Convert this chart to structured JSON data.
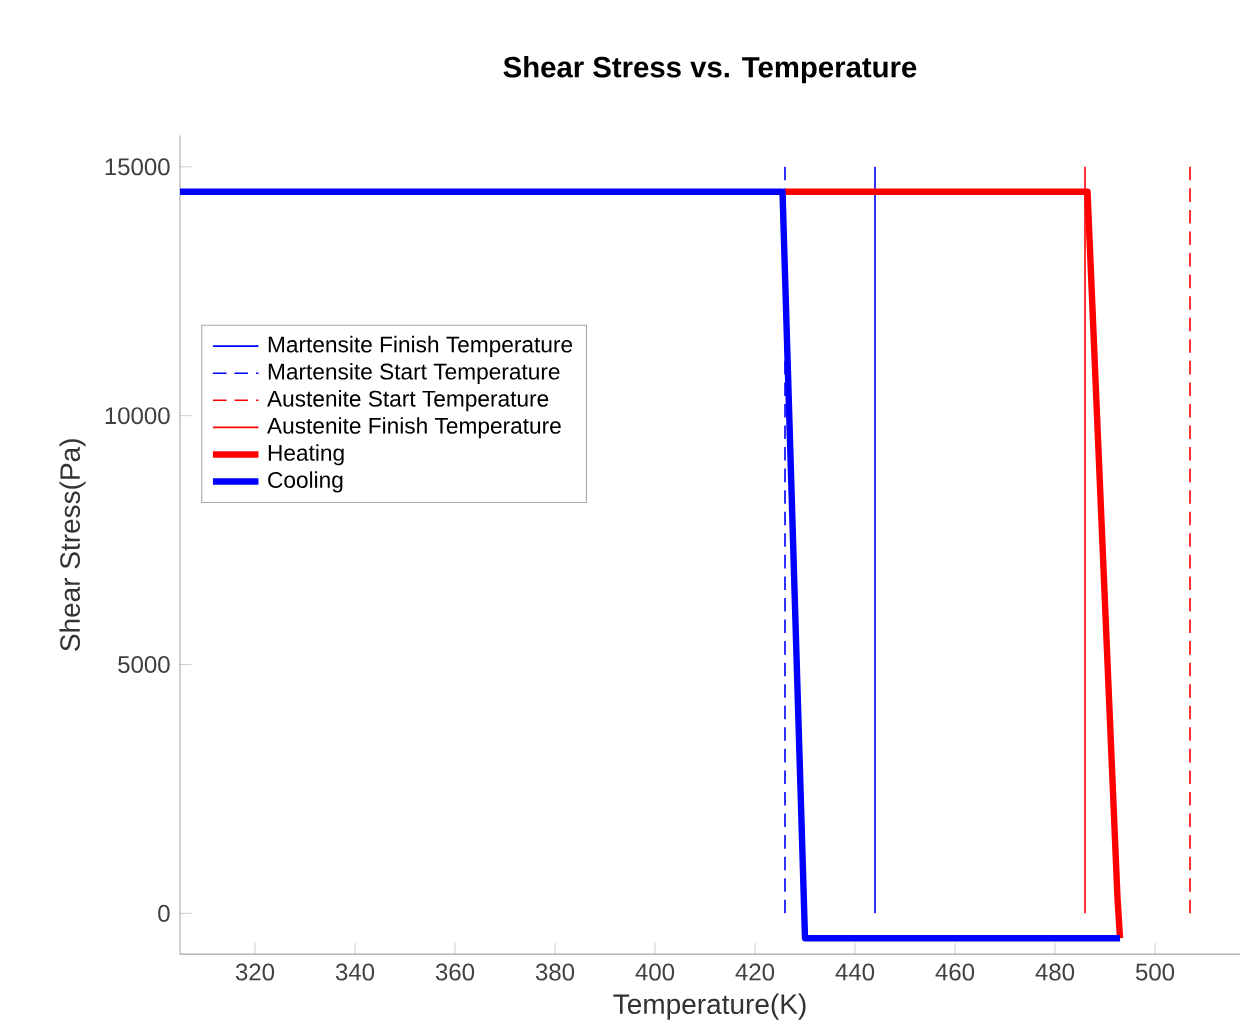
{
  "chart_data": {
    "type": "line",
    "title": "Shear Stress vs. Temperature",
    "xlabel": "Temperature(K)",
    "ylabel": "Shear Stress(Pa)",
    "xlim": [
      305,
      517
    ],
    "ylim": [
      -820,
      15630
    ],
    "xticks": [
      320,
      340,
      360,
      380,
      400,
      420,
      440,
      460,
      480,
      500
    ],
    "yticks": [
      0,
      5000,
      10000,
      15000
    ],
    "series": [
      {
        "name": "Martensite Finish Temperature",
        "color": "#0000ff",
        "line_style": "solid",
        "x": [
          444,
          444
        ],
        "values": [
          0,
          15000
        ]
      },
      {
        "name": "Martensite Start Temperature",
        "color": "#0000ff",
        "line_style": "dashed",
        "x": [
          426,
          426
        ],
        "values": [
          0,
          15000
        ]
      },
      {
        "name": "Austenite Start Temperature",
        "color": "#ff0000",
        "line_style": "dashed",
        "x": [
          507,
          507
        ],
        "values": [
          0,
          15000
        ]
      },
      {
        "name": "Austenite Finish Temperature",
        "color": "#ff0000",
        "line_style": "solid",
        "x": [
          486,
          486
        ],
        "values": [
          0,
          15000
        ]
      },
      {
        "name": "Heating",
        "color": "#ff0000",
        "x": [
          426,
          486.5,
          492.5,
          493
        ],
        "values": [
          14500,
          14500,
          300,
          -500
        ]
      },
      {
        "name": "Cooling",
        "color": "#0000ff",
        "x": [
          305,
          425.5,
          430,
          493
        ],
        "values": [
          14500,
          14500,
          -500,
          -500
        ]
      }
    ],
    "legend": "left",
    "grid": false,
    "marker": "none",
    "line_style": "solid"
  }
}
